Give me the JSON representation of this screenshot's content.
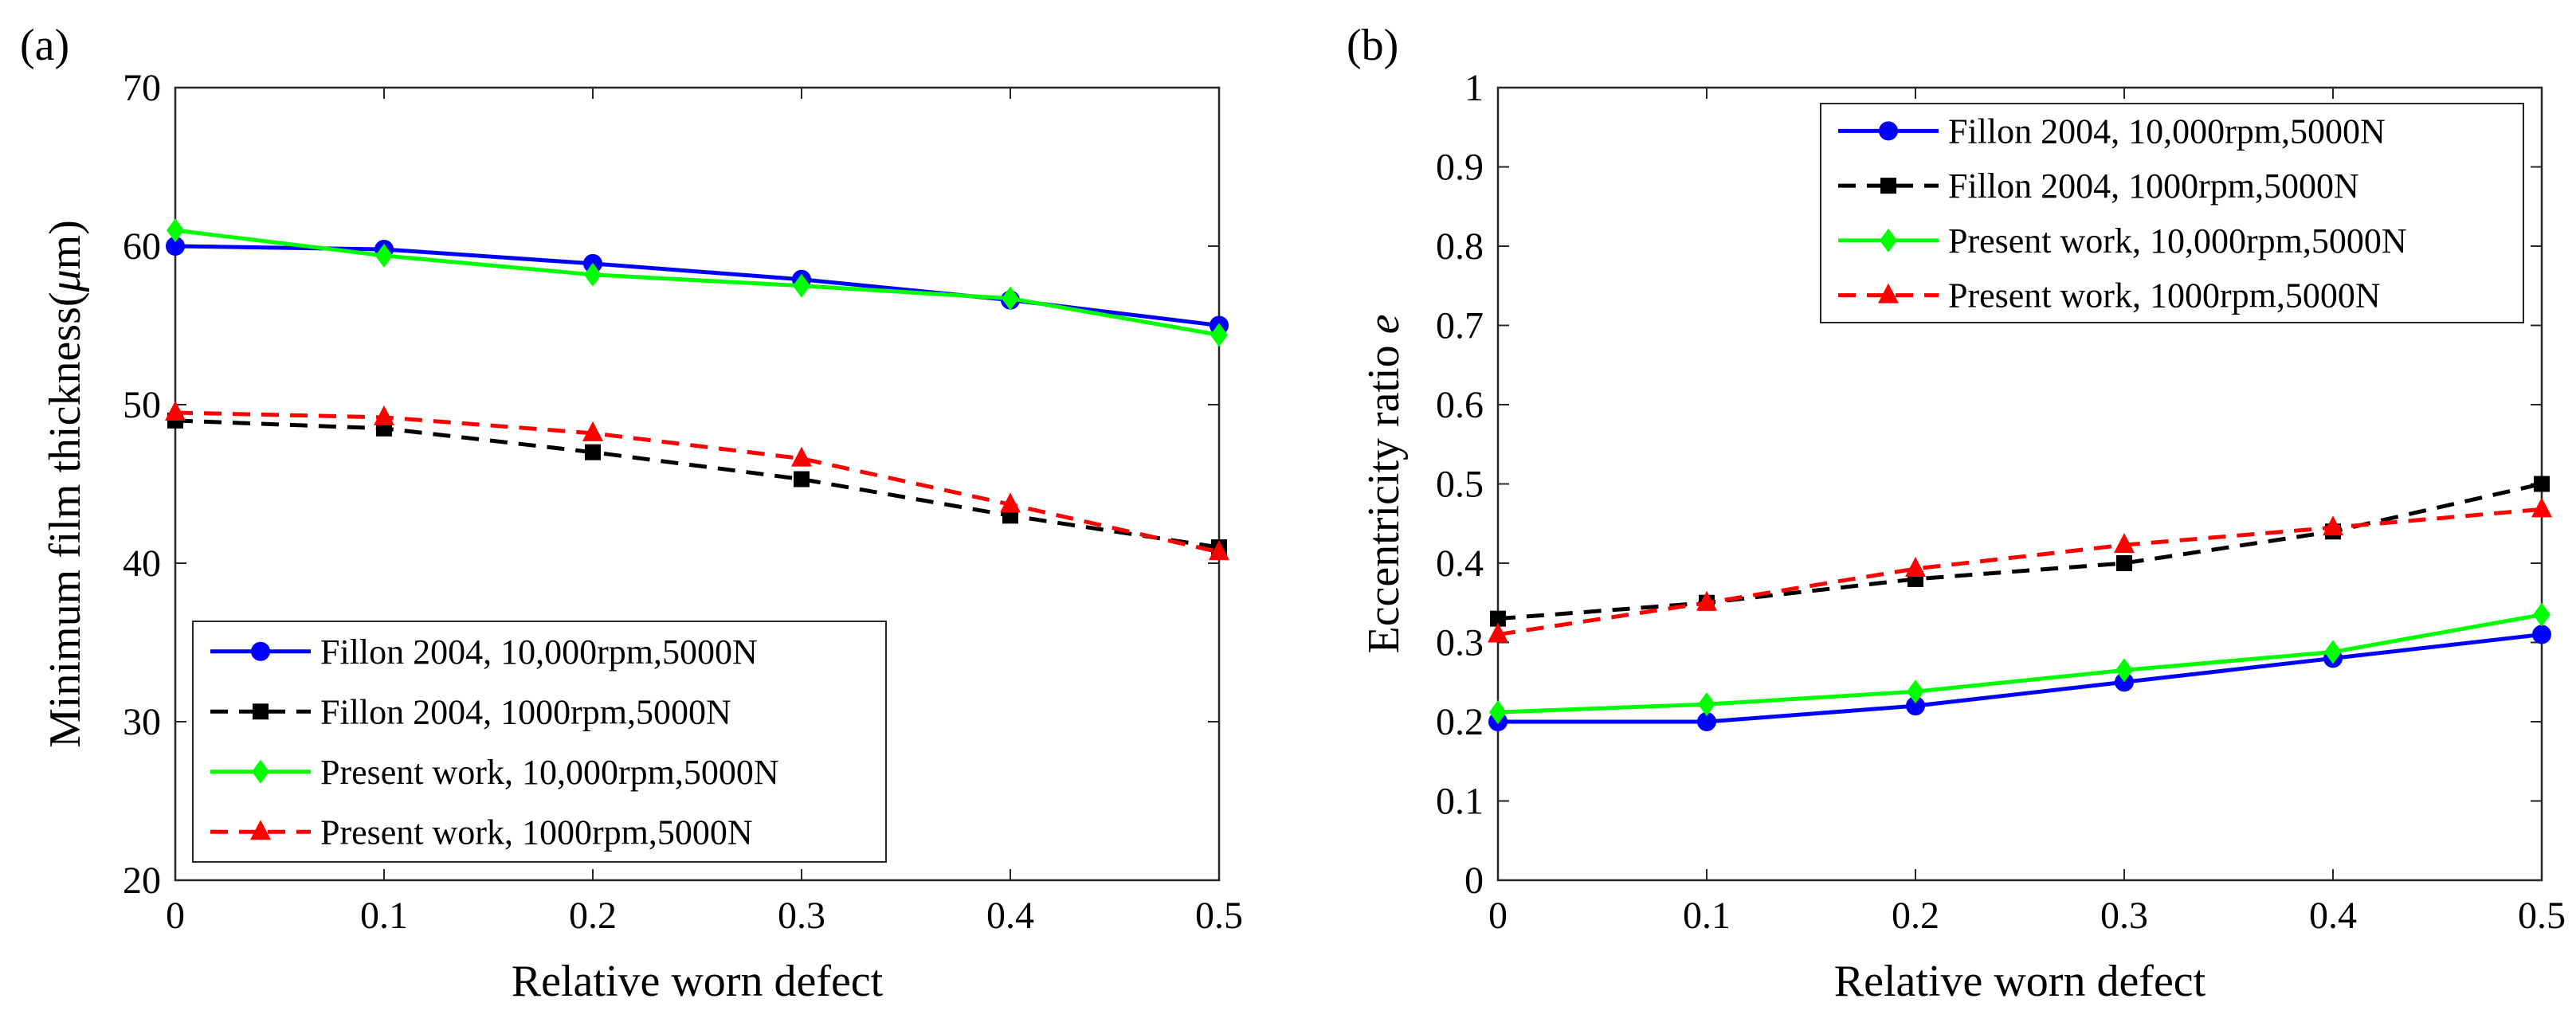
{
  "chart_data": [
    {
      "type": "line",
      "panel_label": "(a)",
      "xlabel": "Relative worn defect",
      "ylabel": "Minimum film thickness(",
      "ylabel_symbol": "μ",
      "ylabel_suffix": "m)",
      "xlim": [
        0,
        0.5
      ],
      "ylim": [
        20,
        70
      ],
      "xticks": [
        0,
        0.1,
        0.2,
        0.3,
        0.4,
        0.5
      ],
      "xtick_labels": [
        "0",
        "0.1",
        "0.2",
        "0.3",
        "0.4",
        "0.5"
      ],
      "yticks": [
        20,
        30,
        40,
        50,
        60,
        70
      ],
      "ytick_labels": [
        "20",
        "30",
        "40",
        "50",
        "60",
        "70"
      ],
      "legend_position": "lower-left",
      "x": [
        0,
        0.1,
        0.2,
        0.3,
        0.4,
        0.5
      ],
      "series": [
        {
          "name": "Fillon 2004, 10,000rpm,5000N",
          "color": "#0000ff",
          "dash": "solid",
          "marker": "circle",
          "values": [
            60.0,
            59.8,
            58.9,
            57.9,
            56.6,
            55.0
          ]
        },
        {
          "name": "Fillon 2004, 1000rpm,5000N",
          "color": "#000000",
          "dash": "dashed",
          "marker": "square",
          "values": [
            49.0,
            48.5,
            47.0,
            45.3,
            43.0,
            41.0
          ]
        },
        {
          "name": "Present work, 10,000rpm,5000N",
          "color": "#00ff00",
          "dash": "solid",
          "marker": "diamond",
          "values": [
            61.0,
            59.4,
            58.2,
            57.5,
            56.7,
            54.4
          ]
        },
        {
          "name": "Present work, 1000rpm,5000N",
          "color": "#ff0000",
          "dash": "dashed",
          "marker": "triangle",
          "values": [
            49.5,
            49.2,
            48.2,
            46.6,
            43.7,
            40.7
          ]
        }
      ]
    },
    {
      "type": "line",
      "panel_label": "(b)",
      "xlabel": "Relative worn defect",
      "ylabel": "Eccentricity ratio ",
      "ylabel_symbol": "e",
      "ylabel_suffix": "",
      "xlim": [
        0,
        0.5
      ],
      "ylim": [
        0,
        1
      ],
      "xticks": [
        0,
        0.1,
        0.2,
        0.3,
        0.4,
        0.5
      ],
      "xtick_labels": [
        "0",
        "0.1",
        "0.2",
        "0.3",
        "0.4",
        "0.5"
      ],
      "yticks": [
        0,
        0.1,
        0.2,
        0.3,
        0.4,
        0.5,
        0.6,
        0.7,
        0.8,
        0.9,
        1
      ],
      "ytick_labels": [
        "0",
        "0.1",
        "0.2",
        "0.3",
        "0.4",
        "0.5",
        "0.6",
        "0.7",
        "0.8",
        "0.9",
        "1"
      ],
      "legend_position": "top-right",
      "x": [
        0,
        0.1,
        0.2,
        0.3,
        0.4,
        0.5
      ],
      "series": [
        {
          "name": "Fillon 2004, 10,000rpm,5000N",
          "color": "#0000ff",
          "dash": "solid",
          "marker": "circle",
          "values": [
            0.2,
            0.2,
            0.22,
            0.25,
            0.28,
            0.31
          ]
        },
        {
          "name": "Fillon 2004, 1000rpm,5000N",
          "color": "#000000",
          "dash": "dashed",
          "marker": "square",
          "values": [
            0.33,
            0.35,
            0.38,
            0.4,
            0.44,
            0.5
          ]
        },
        {
          "name": "Present work, 10,000rpm,5000N",
          "color": "#00ff00",
          "dash": "solid",
          "marker": "diamond",
          "values": [
            0.212,
            0.222,
            0.238,
            0.265,
            0.288,
            0.335
          ]
        },
        {
          "name": "Present work, 1000rpm,5000N",
          "color": "#ff0000",
          "dash": "dashed",
          "marker": "triangle",
          "values": [
            0.31,
            0.35,
            0.393,
            0.423,
            0.445,
            0.468
          ]
        }
      ]
    }
  ]
}
